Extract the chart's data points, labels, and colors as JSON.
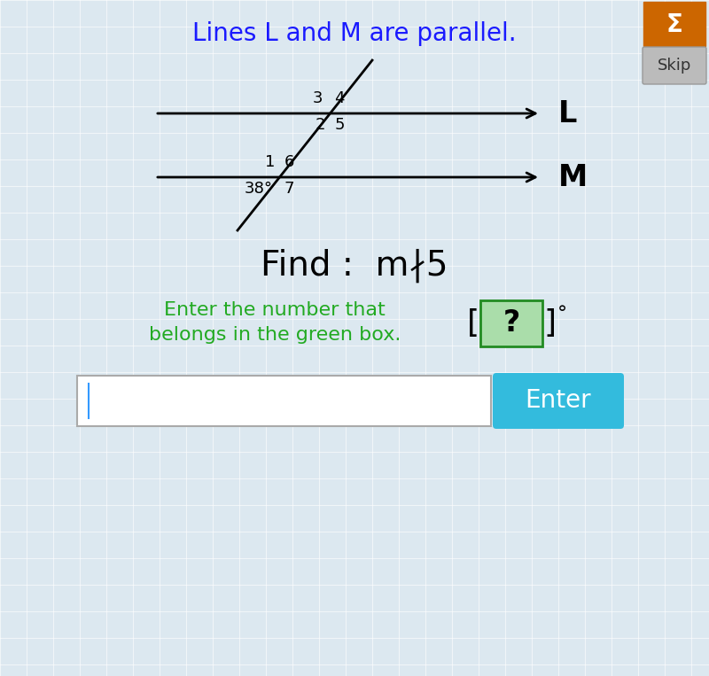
{
  "title": "Lines L and M are parallel.",
  "title_color": "#1a1aff",
  "title_fontsize": 20,
  "bg_color": "#dce8f0",
  "label_L": "L",
  "label_M": "M",
  "angle_label": "38°",
  "find_text": "Find :  m∤5",
  "find_fontsize": 28,
  "instruction_line1": "Enter the number that",
  "instruction_line2": "belongs in the green box.",
  "instruction_color": "#22aa22",
  "instruction_fontsize": 16,
  "question_mark_text": "?",
  "degree_symbol": "°",
  "green_box_color": "#aaddaa",
  "green_box_border": "#228B22",
  "enter_button_color": "#33bbdd",
  "enter_button_text": "Enter",
  "enter_button_text_color": "white",
  "skip_button_color": "#bbbbbb",
  "skip_button_text": "Skip",
  "icon_color": "#cc6600",
  "icon_text": "Σ",
  "grid_color": "#ffffff",
  "num_fontsize": 13,
  "label_fontsize": 24
}
